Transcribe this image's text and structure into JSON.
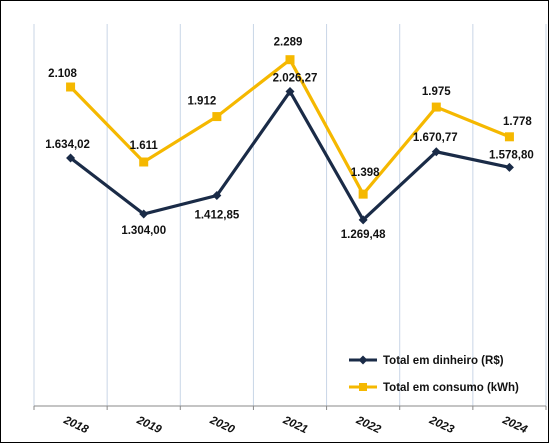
{
  "chart_data": {
    "type": "line",
    "title": "",
    "xlabel": "",
    "ylabel": "",
    "categories": [
      "2018",
      "2019",
      "2020",
      "2021",
      "2022",
      "2023",
      "2024"
    ],
    "series": [
      {
        "name": "Total em dinheiro (R$)",
        "color": "#1a2b47",
        "marker": "diamond",
        "values": [
          1634.02,
          1304.0,
          1412.85,
          2026.27,
          1269.48,
          1670.77,
          1578.8
        ],
        "labels": [
          "1.634,02",
          "1.304,00",
          "1.412,85",
          "2.026,27",
          "1.269,48",
          "1.670,77",
          "1.578,80"
        ]
      },
      {
        "name": "Total em consumo (kWh)",
        "color": "#f5b800",
        "marker": "square",
        "values": [
          2108,
          1611,
          1912,
          2289,
          1398,
          1975,
          1778
        ],
        "labels": [
          "2.108",
          "1.611",
          "1.912",
          "2.289",
          "1.398",
          "1.975",
          "1.778"
        ]
      }
    ],
    "ylim": [
      0,
      2500
    ],
    "grid": "vertical",
    "legend_position": "bottom-right"
  }
}
